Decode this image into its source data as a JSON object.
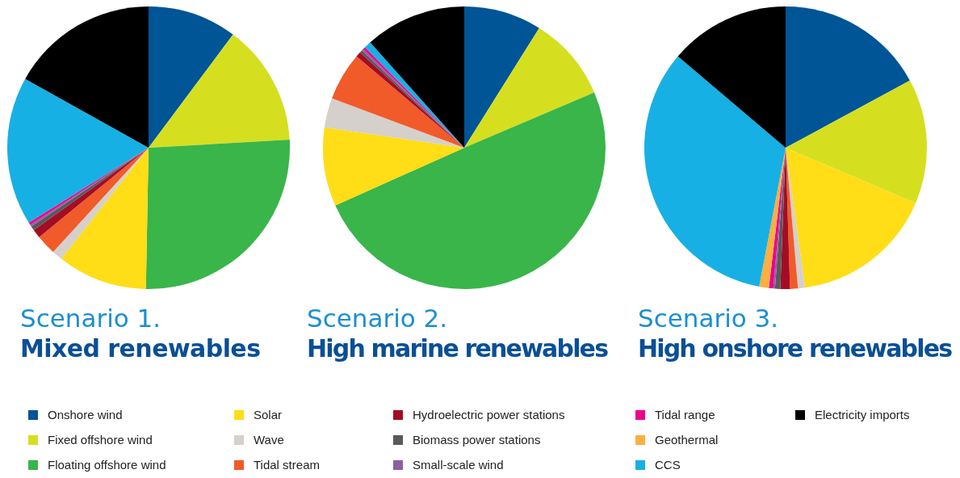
{
  "chart_data": [
    {
      "type": "pie",
      "title": "Scenario 1.",
      "subtitle": "Mixed renewables",
      "legend": "bottom",
      "categories": [
        "Onshore wind",
        "Fixed offshore wind",
        "Floating offshore wind",
        "Solar",
        "Wave",
        "Tidal stream",
        "Hydroelectric power stations",
        "Biomass power stations",
        "Small-scale wind",
        "Tidal range",
        "Geothermal",
        "CCS",
        "Electricity imports"
      ],
      "colors": [
        "#005596",
        "#d5df20",
        "#39b54a",
        "#ffdd17",
        "#d5d0cb",
        "#f15a29",
        "#a30d24",
        "#58595b",
        "#8e5ea2",
        "#ec008c",
        "#fbb040",
        "#17b0e5",
        "#000000"
      ],
      "values": [
        10.2,
        13.9,
        26.2,
        10.3,
        1.2,
        2.3,
        1.0,
        0.5,
        0.2,
        0.3,
        0,
        17.0,
        16.9
      ]
    },
    {
      "type": "pie",
      "title": "Scenario 2.",
      "subtitle": "High marine renewables",
      "categories": [
        null,
        null,
        null,
        null,
        null,
        null,
        null,
        null,
        null,
        null,
        null,
        null,
        null
      ],
      "colors": [
        "#005596",
        "#d5df20",
        "#39b54a",
        "#ffdd17",
        "#d5d0cb",
        "#f15a29",
        "#a30d24",
        "#58595b",
        "#8e5ea2",
        "#ec008c",
        "#fbb040",
        "#17b0e5",
        "#000000"
      ],
      "values": [
        8.9,
        9.7,
        49.7,
        9.0,
        3.4,
        5.5,
        0.6,
        0.3,
        0.2,
        0.3,
        0,
        0.8,
        11.6
      ]
    },
    {
      "type": "pie",
      "title": "Scenario 3.",
      "subtitle": "High onshore renewables",
      "categories": [
        null,
        null,
        null,
        null,
        null,
        null,
        null,
        null,
        null,
        null,
        null,
        null,
        null
      ],
      "colors": [
        "#005596",
        "#d5df20",
        "#39b54a",
        "#ffdd17",
        "#d5d0cb",
        "#f15a29",
        "#a30d24",
        "#58595b",
        "#8e5ea2",
        "#ec008c",
        "#fbb040",
        "#17b0e5",
        "#000000"
      ],
      "values": [
        17.1,
        14.3,
        0,
        16.4,
        0.8,
        0.9,
        1.1,
        0.6,
        0.2,
        0.5,
        1.1,
        33.2,
        13.8
      ]
    }
  ]
}
